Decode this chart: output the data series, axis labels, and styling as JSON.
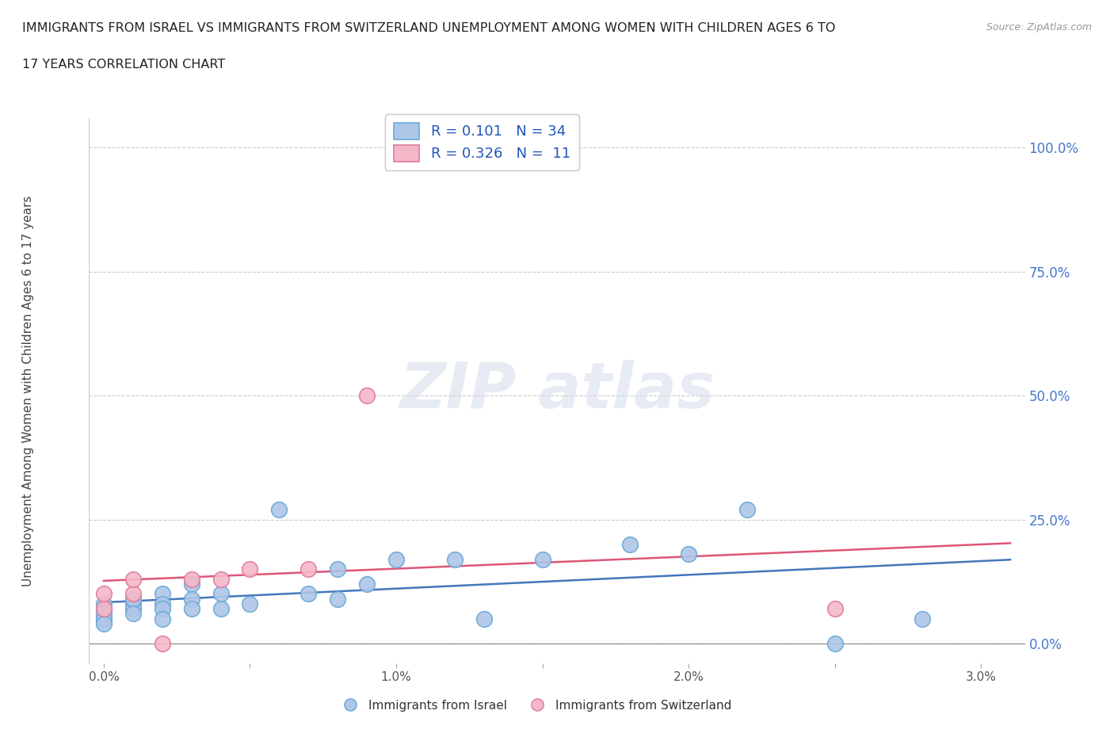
{
  "title_line1": "IMMIGRANTS FROM ISRAEL VS IMMIGRANTS FROM SWITZERLAND UNEMPLOYMENT AMONG WOMEN WITH CHILDREN AGES 6 TO",
  "title_line2": "17 YEARS CORRELATION CHART",
  "source": "Source: ZipAtlas.com",
  "ylabel_label": "Unemployment Among Women with Children Ages 6 to 17 years",
  "x_ticks": [
    0.0,
    0.005,
    0.01,
    0.015,
    0.02,
    0.025,
    0.03
  ],
  "x_tick_labels": [
    "0.0%",
    "",
    "1.0%",
    "",
    "2.0%",
    "",
    "3.0%"
  ],
  "y_ticks": [
    0.0,
    0.25,
    0.5,
    0.75,
    1.0
  ],
  "y_tick_labels": [
    "0.0%",
    "25.0%",
    "50.0%",
    "75.0%",
    "100.0%"
  ],
  "xlim": [
    -0.0005,
    0.0315
  ],
  "ylim": [
    -0.04,
    1.06
  ],
  "israel_color": "#aec6e8",
  "israel_edge": "#6aaad4",
  "switzerland_color": "#f4b8c8",
  "switzerland_edge": "#e07a9a",
  "israel_R": 0.101,
  "israel_N": 34,
  "switzerland_R": 0.326,
  "switzerland_N": 11,
  "israel_line_color": "#4477bb",
  "switzerland_line_color": "#dd5577",
  "israel_x": [
    0.0,
    0.0,
    0.0,
    0.0,
    0.0,
    0.0,
    0.001,
    0.001,
    0.001,
    0.001,
    0.002,
    0.002,
    0.002,
    0.002,
    0.003,
    0.003,
    0.003,
    0.004,
    0.004,
    0.005,
    0.006,
    0.007,
    0.008,
    0.008,
    0.009,
    0.01,
    0.012,
    0.013,
    0.015,
    0.018,
    0.02,
    0.022,
    0.025,
    0.028
  ],
  "israel_y": [
    0.05,
    0.07,
    0.08,
    0.06,
    0.05,
    0.04,
    0.08,
    0.07,
    0.09,
    0.06,
    0.1,
    0.08,
    0.07,
    0.05,
    0.12,
    0.09,
    0.07,
    0.1,
    0.07,
    0.08,
    0.27,
    0.1,
    0.15,
    0.09,
    0.12,
    0.17,
    0.17,
    0.05,
    0.17,
    0.2,
    0.18,
    0.27,
    0.0,
    0.05
  ],
  "switzerland_x": [
    0.0,
    0.0,
    0.001,
    0.001,
    0.002,
    0.003,
    0.004,
    0.005,
    0.007,
    0.009,
    0.025
  ],
  "switzerland_y": [
    0.07,
    0.1,
    0.1,
    0.13,
    0.0,
    0.13,
    0.13,
    0.15,
    0.15,
    0.5,
    0.07
  ],
  "watermark_text": "ZIPatlas",
  "legend_israel": "R = 0.101   N = 34",
  "legend_switzerland": "R = 0.326   N =  11"
}
